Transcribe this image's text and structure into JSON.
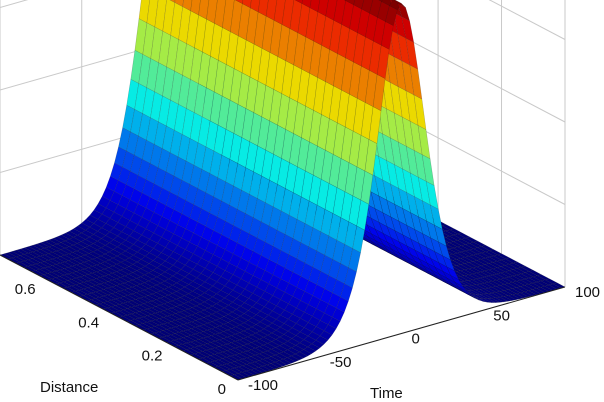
{
  "chart_data": {
    "type": "surface",
    "title": "",
    "xlabel": "Time",
    "ylabel": "Distance",
    "zlabel": "",
    "x_ticks": [
      -100,
      -50,
      0,
      50,
      100
    ],
    "y_ticks": [
      0,
      0.2,
      0.4,
      0.6
    ],
    "xlim": [
      -100,
      100
    ],
    "ylim": [
      0,
      0.75
    ],
    "zlim": [
      0,
      1
    ],
    "colormap": "jet",
    "surface": {
      "description_formula": "z = sech^2(time / 20)",
      "varies_with_distance": false
    },
    "grid": true
  }
}
